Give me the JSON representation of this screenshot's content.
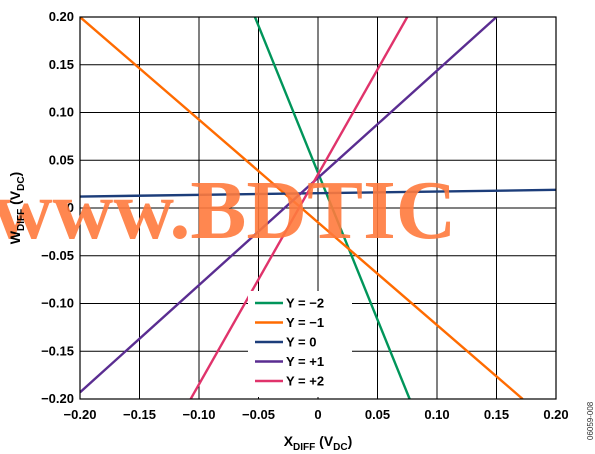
{
  "chart_data": {
    "type": "line",
    "title": "",
    "xlabel": {
      "main": "X",
      "sub": "DIFF",
      "unit_open": " (V",
      "unit_sub": "DC",
      "unit_close": ")"
    },
    "ylabel": {
      "main": "W",
      "sub": "DIFF",
      "unit_open": " (V",
      "unit_sub": "DC",
      "unit_close": ")"
    },
    "xlim": [
      -0.2,
      0.2
    ],
    "ylim": [
      -0.2,
      0.2
    ],
    "x_ticks": [
      -0.2,
      -0.15,
      -0.1,
      -0.05,
      0,
      0.05,
      0.1,
      0.15,
      0.2
    ],
    "x_tick_labels": [
      "−0.20",
      "−0.15",
      "−0.10",
      "−0.05",
      "0",
      "0.05",
      "0.10",
      "0.15",
      "0.20"
    ],
    "y_ticks": [
      0.2,
      0.15,
      0.1,
      0.05,
      0,
      -0.05,
      -0.1,
      -0.15,
      -0.2
    ],
    "y_tick_labels": [
      "0.20",
      "0.15",
      "0.10",
      "0.05",
      "0",
      "−0.05",
      "−0.10",
      "−0.15",
      "−0.20"
    ],
    "grid": true,
    "legend_position": "bottom-center",
    "series": [
      {
        "name": "Y = −2",
        "color": "#00955a",
        "points": [
          [
            -0.053,
            0.2
          ],
          [
            0.077,
            -0.2
          ]
        ]
      },
      {
        "name": "Y = −1",
        "color": "#ff6b00",
        "points": [
          [
            -0.2,
            0.2
          ],
          [
            0.172,
            -0.2
          ]
        ]
      },
      {
        "name": "Y = 0",
        "color": "#1c3d7a",
        "points": [
          [
            -0.2,
            0.012
          ],
          [
            0.2,
            0.019
          ]
        ]
      },
      {
        "name": "Y = +1",
        "color": "#5a2d91",
        "points": [
          [
            -0.2,
            -0.193
          ],
          [
            0.15,
            0.2
          ]
        ]
      },
      {
        "name": "Y = +2",
        "color": "#e0336b",
        "points": [
          [
            -0.107,
            -0.2
          ],
          [
            0.075,
            0.2
          ]
        ]
      }
    ]
  },
  "watermark": {
    "text": "www.BDTIC"
  },
  "figure_id": "06059-008"
}
